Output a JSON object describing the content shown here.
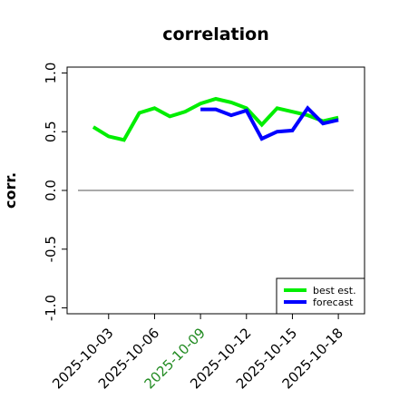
{
  "chart_data": {
    "type": "line",
    "title": "correlation",
    "xlabel": "",
    "ylabel": "corr.",
    "ylim": [
      -1.05,
      1.05
    ],
    "xlim": [
      "2025-10-01",
      "2025-10-19"
    ],
    "y_ticks": [
      "-1.0",
      "-0.5",
      "0.0",
      "0.5",
      "1.0"
    ],
    "x_tick_labels": [
      {
        "date": "2025-10-03",
        "label": "2025-10-03",
        "color": "#000000"
      },
      {
        "date": "2025-10-06",
        "label": "2025-10-06",
        "color": "#000000"
      },
      {
        "date": "2025-10-09",
        "label": "2025-10-09",
        "color": "#228B22"
      },
      {
        "date": "2025-10-12",
        "label": "2025-10-12",
        "color": "#000000"
      },
      {
        "date": "2025-10-15",
        "label": "2025-10-15",
        "color": "#000000"
      },
      {
        "date": "2025-10-18",
        "label": "2025-10-18",
        "color": "#000000"
      }
    ],
    "reference_line": {
      "y": 0,
      "from": "2025-10-01",
      "to": "2025-10-19",
      "color": "#555555"
    },
    "series": [
      {
        "name": "best est.",
        "color": "#00ee00",
        "points": [
          [
            "2025-10-02",
            0.54
          ],
          [
            "2025-10-03",
            0.46
          ],
          [
            "2025-10-04",
            0.43
          ],
          [
            "2025-10-05",
            0.66
          ],
          [
            "2025-10-06",
            0.7
          ],
          [
            "2025-10-07",
            0.63
          ],
          [
            "2025-10-08",
            0.67
          ],
          [
            "2025-10-09",
            0.74
          ],
          [
            "2025-10-10",
            0.78
          ],
          [
            "2025-10-11",
            0.75
          ],
          [
            "2025-10-12",
            0.7
          ],
          [
            "2025-10-13",
            0.56
          ],
          [
            "2025-10-14",
            0.7
          ],
          [
            "2025-10-15",
            0.67
          ],
          [
            "2025-10-16",
            0.64
          ],
          [
            "2025-10-17",
            0.59
          ],
          [
            "2025-10-18",
            0.62
          ]
        ]
      },
      {
        "name": "forecast",
        "color": "#0000ff",
        "points": [
          [
            "2025-10-09",
            0.69
          ],
          [
            "2025-10-10",
            0.69
          ],
          [
            "2025-10-11",
            0.64
          ],
          [
            "2025-10-12",
            0.68
          ],
          [
            "2025-10-13",
            0.44
          ],
          [
            "2025-10-14",
            0.5
          ],
          [
            "2025-10-15",
            0.51
          ],
          [
            "2025-10-16",
            0.7
          ],
          [
            "2025-10-17",
            0.57
          ],
          [
            "2025-10-18",
            0.6
          ]
        ]
      }
    ],
    "grid": false,
    "legend_position": "bottom-right"
  }
}
